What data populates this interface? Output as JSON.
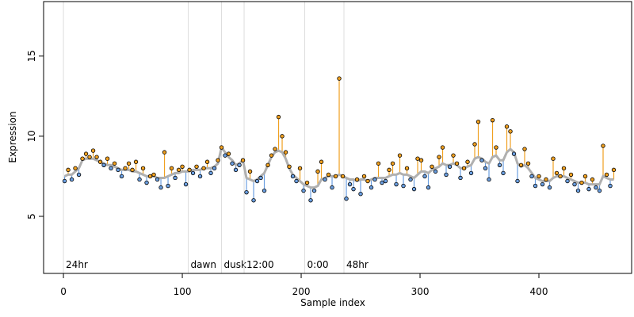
{
  "chart_data": {
    "type": "scatter",
    "x_label": "Sample index",
    "y_label": "Expression",
    "xlim": [
      -16.7,
      478
    ],
    "ylim": [
      1.44,
      18.4
    ],
    "xticks": [
      0,
      100,
      200,
      300,
      400
    ],
    "yticks": [
      5,
      10,
      15
    ],
    "point_color": "#000000",
    "fit_color": "#b0b0b0",
    "above_color": "#f0a020",
    "below_color": "#6a9ee0",
    "annotation_color": "#dddddd",
    "annotation_text_color": "#a0a0a0",
    "annotations": [
      {
        "x": 0,
        "label": "24hr"
      },
      {
        "x": 105,
        "label": "dawn"
      },
      {
        "x": 133,
        "label": "dusk"
      },
      {
        "x": 152,
        "label": "12:00"
      },
      {
        "x": 203,
        "label": "0:00"
      },
      {
        "x": 236,
        "label": "48hr"
      }
    ],
    "x": [
      1,
      4,
      7,
      10,
      13,
      16,
      19,
      22,
      25,
      28,
      31,
      34,
      37,
      40,
      43,
      46,
      49,
      52,
      55,
      58,
      61,
      64,
      67,
      70,
      73,
      76,
      79,
      82,
      85,
      88,
      91,
      94,
      97,
      100,
      103,
      106,
      109,
      112,
      115,
      118,
      121,
      124,
      127,
      130,
      133,
      136,
      139,
      142,
      145,
      148,
      151,
      154,
      157,
      160,
      163,
      166,
      169,
      172,
      175,
      178,
      181,
      184,
      187,
      190,
      193,
      196,
      199,
      202,
      205,
      208,
      211,
      214,
      217,
      220,
      223,
      226,
      229,
      232,
      235,
      238,
      241,
      244,
      247,
      250,
      253,
      256,
      259,
      262,
      265,
      268,
      271,
      274,
      277,
      280,
      283,
      286,
      289,
      292,
      295,
      298,
      301,
      304,
      307,
      310,
      313,
      316,
      319,
      322,
      325,
      328,
      331,
      334,
      337,
      340,
      343,
      346,
      349,
      352,
      355,
      358,
      361,
      364,
      367,
      370,
      373,
      376,
      379,
      382,
      385,
      388,
      391,
      394,
      397,
      400,
      403,
      406,
      409,
      412,
      415,
      418,
      421,
      424,
      427,
      430,
      433,
      436,
      439,
      442,
      445,
      448,
      451,
      454,
      457,
      460,
      463
    ],
    "values": [
      7.2,
      7.9,
      7.3,
      8.0,
      7.6,
      8.6,
      8.9,
      8.7,
      9.1,
      8.7,
      8.4,
      8.2,
      8.6,
      8.0,
      8.3,
      7.9,
      7.5,
      8.0,
      8.3,
      7.9,
      8.4,
      7.3,
      8.0,
      7.1,
      7.5,
      7.6,
      7.3,
      6.8,
      9.0,
      6.9,
      8.0,
      7.4,
      7.9,
      8.1,
      7.0,
      7.9,
      7.7,
      8.1,
      7.5,
      8.0,
      8.4,
      7.7,
      8.0,
      8.5,
      9.3,
      8.8,
      8.9,
      8.3,
      7.9,
      8.2,
      8.5,
      6.5,
      7.8,
      6.0,
      7.2,
      7.4,
      6.6,
      8.2,
      8.8,
      9.2,
      11.2,
      10.0,
      9.0,
      8.1,
      7.5,
      7.2,
      8.0,
      6.6,
      7.1,
      6.0,
      6.6,
      7.8,
      8.4,
      7.3,
      7.6,
      6.8,
      7.5,
      13.6,
      7.5,
      6.1,
      7.0,
      6.7,
      7.3,
      6.4,
      7.5,
      7.2,
      6.8,
      7.3,
      8.3,
      7.1,
      7.2,
      7.9,
      8.3,
      7.0,
      8.8,
      6.9,
      8.0,
      7.3,
      6.7,
      8.6,
      8.5,
      7.5,
      6.8,
      8.1,
      7.8,
      8.7,
      9.3,
      7.6,
      8.1,
      8.8,
      8.3,
      7.4,
      8.0,
      8.4,
      7.7,
      9.5,
      10.9,
      8.5,
      8.0,
      7.3,
      11.0,
      9.3,
      8.2,
      7.7,
      10.6,
      10.3,
      8.9,
      7.2,
      8.2,
      9.2,
      8.3,
      7.5,
      6.9,
      7.5,
      7.0,
      7.3,
      6.8,
      8.6,
      7.7,
      7.5,
      8.0,
      7.2,
      7.6,
      7.0,
      6.6,
      7.1,
      7.5,
      6.7,
      7.3,
      6.8,
      6.6,
      9.4,
      7.6,
      6.9,
      7.9
    ],
    "fit": [
      7.5,
      7.6,
      7.6,
      7.8,
      8.0,
      8.5,
      8.6,
      8.6,
      8.6,
      8.5,
      8.4,
      8.3,
      8.2,
      8.2,
      8.1,
      8.0,
      7.9,
      7.9,
      7.9,
      7.8,
      7.8,
      7.7,
      7.6,
      7.5,
      7.5,
      7.5,
      7.4,
      7.4,
      7.4,
      7.5,
      7.6,
      7.7,
      7.7,
      7.8,
      7.8,
      7.8,
      7.9,
      7.9,
      7.9,
      8.0,
      8.0,
      8.0,
      8.1,
      8.3,
      9.3,
      9.0,
      8.7,
      8.5,
      8.2,
      8.3,
      8.5,
      7.4,
      7.3,
      7.2,
      7.3,
      7.5,
      7.7,
      8.2,
      8.7,
      9.0,
      9.1,
      9.0,
      8.6,
      8.0,
      7.6,
      7.4,
      7.2,
      7.0,
      6.9,
      6.8,
      6.8,
      6.9,
      7.3,
      7.4,
      7.5,
      7.5,
      7.5,
      7.6,
      7.5,
      7.4,
      7.3,
      7.3,
      7.2,
      7.3,
      7.3,
      7.2,
      7.3,
      7.4,
      7.4,
      7.4,
      7.4,
      7.5,
      7.6,
      7.6,
      7.7,
      7.6,
      7.6,
      7.5,
      7.4,
      7.6,
      7.8,
      7.8,
      7.7,
      7.9,
      8.0,
      8.1,
      8.3,
      8.2,
      8.2,
      8.3,
      8.2,
      8.0,
      8.0,
      8.1,
      8.2,
      8.6,
      8.7,
      8.6,
      8.4,
      8.3,
      8.7,
      8.8,
      8.5,
      8.5,
      9.0,
      9.2,
      9.0,
      8.3,
      8.1,
      8.2,
      8.0,
      7.7,
      7.4,
      7.3,
      7.2,
      7.2,
      7.2,
      7.4,
      7.5,
      7.5,
      7.5,
      7.4,
      7.3,
      7.2,
      7.1,
      7.1,
      7.1,
      7.0,
      7.0,
      7.0,
      7.0,
      7.5,
      7.4,
      7.3,
      7.3
    ]
  }
}
